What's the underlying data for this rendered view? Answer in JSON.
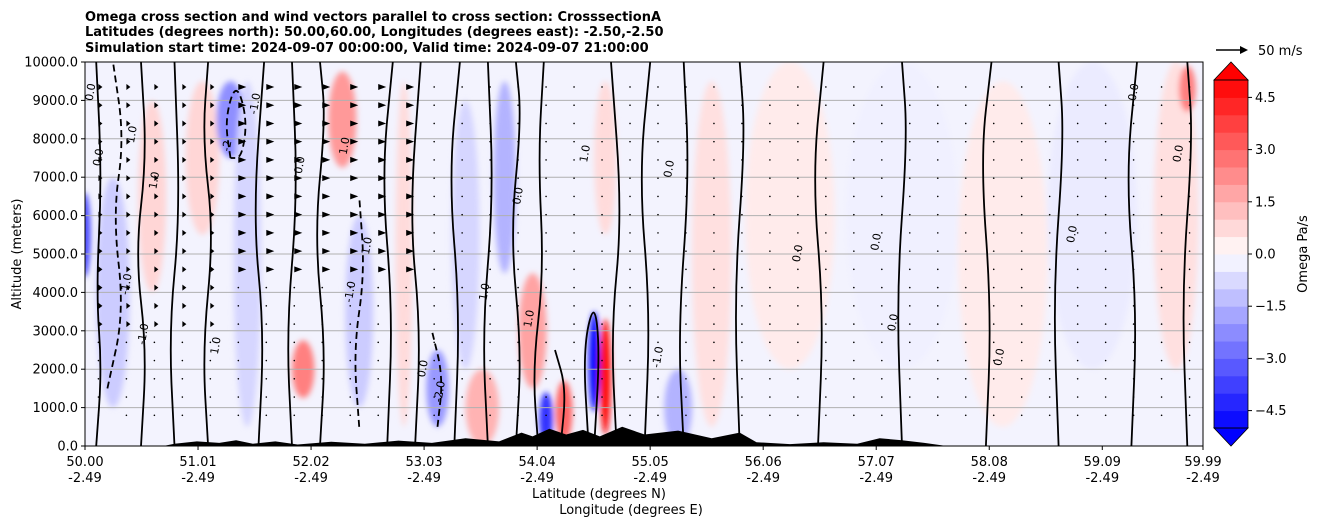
{
  "chart_data": {
    "type": "heatmap",
    "title_lines": [
      "Omega cross section and wind vectors parallel to cross section: CrosssectionA",
      "Latitudes (degrees north): 50.00,60.00, Longitudes (degrees east): -2.50,-2.50",
      "Simulation start time: 2024-09-07 00:00:00, Valid time: 2024-09-07 21:00:00"
    ],
    "ylabel": "Altitude (meters)",
    "xlabel_lat": "Latitude (degrees N)",
    "xlabel_lon": "Longitude (degrees E)",
    "ylim": [
      0,
      10000
    ],
    "xlim": [
      50.0,
      59.99
    ],
    "y_ticks": [
      {
        "value": 0,
        "label": "0.0"
      },
      {
        "value": 1000,
        "label": "1000.0"
      },
      {
        "value": 2000,
        "label": "2000.0"
      },
      {
        "value": 3000,
        "label": "3000.0"
      },
      {
        "value": 4000,
        "label": "4000.0"
      },
      {
        "value": 5000,
        "label": "5000.0"
      },
      {
        "value": 6000,
        "label": "6000.0"
      },
      {
        "value": 7000,
        "label": "7000.0"
      },
      {
        "value": 8000,
        "label": "8000.0"
      },
      {
        "value": 9000,
        "label": "9000.0"
      },
      {
        "value": 10000,
        "label": "10000.0"
      }
    ],
    "x_ticks": [
      {
        "value": 50.0,
        "lat": "50.00",
        "lon": "-2.49"
      },
      {
        "value": 51.01,
        "lat": "51.01",
        "lon": "-2.49"
      },
      {
        "value": 52.02,
        "lat": "52.02",
        "lon": "-2.49"
      },
      {
        "value": 53.03,
        "lat": "53.03",
        "lon": "-2.49"
      },
      {
        "value": 54.04,
        "lat": "54.04",
        "lon": "-2.49"
      },
      {
        "value": 55.05,
        "lat": "55.05",
        "lon": "-2.49"
      },
      {
        "value": 56.06,
        "lat": "56.06",
        "lon": "-2.49"
      },
      {
        "value": 57.07,
        "lat": "57.07",
        "lon": "-2.49"
      },
      {
        "value": 58.08,
        "lat": "58.08",
        "lon": "-2.49"
      },
      {
        "value": 59.09,
        "lat": "59.09",
        "lon": "-2.49"
      },
      {
        "value": 59.99,
        "lat": "59.99",
        "lon": "-2.49"
      }
    ],
    "colorbar": {
      "label": "Omega Pa/s",
      "range": [
        -5.0,
        5.0
      ],
      "ticks": [
        {
          "value": 4.5,
          "label": "4.5"
        },
        {
          "value": 3.0,
          "label": "3.0"
        },
        {
          "value": 1.5,
          "label": "1.5"
        },
        {
          "value": 0.0,
          "label": "0.0"
        },
        {
          "value": -1.5,
          "label": "−1.5"
        },
        {
          "value": -3.0,
          "label": "−3.0"
        },
        {
          "value": -4.5,
          "label": "−4.5"
        }
      ]
    },
    "wind_key": {
      "label": "50 m/s",
      "speed": 50
    },
    "shaded_regions": [
      {
        "x": 50.0,
        "alt": 5500,
        "w": 0.1,
        "h": 2200,
        "omega": -3.5
      },
      {
        "x": 50.25,
        "alt": 4000,
        "w": 0.3,
        "h": 6000,
        "omega": -1.0
      },
      {
        "x": 50.6,
        "alt": 6500,
        "w": 0.25,
        "h": 5000,
        "omega": 0.8
      },
      {
        "x": 51.05,
        "alt": 7500,
        "w": 0.3,
        "h": 4000,
        "omega": 0.8
      },
      {
        "x": 51.3,
        "alt": 8500,
        "w": 0.25,
        "h": 2000,
        "omega": -2.2
      },
      {
        "x": 51.45,
        "alt": 5000,
        "w": 0.25,
        "h": 9000,
        "omega": -0.8
      },
      {
        "x": 51.95,
        "alt": 2000,
        "w": 0.2,
        "h": 1500,
        "omega": 2.5
      },
      {
        "x": 52.3,
        "alt": 8500,
        "w": 0.25,
        "h": 2500,
        "omega": 2.0
      },
      {
        "x": 52.45,
        "alt": 3500,
        "w": 0.25,
        "h": 5000,
        "omega": -1.0
      },
      {
        "x": 52.85,
        "alt": 5000,
        "w": 0.15,
        "h": 9000,
        "omega": 0.7
      },
      {
        "x": 53.15,
        "alt": 1500,
        "w": 0.2,
        "h": 2000,
        "omega": -2.0
      },
      {
        "x": 53.4,
        "alt": 5500,
        "w": 0.25,
        "h": 7000,
        "omega": -0.8
      },
      {
        "x": 53.55,
        "alt": 1000,
        "w": 0.3,
        "h": 2000,
        "omega": 1.5
      },
      {
        "x": 53.75,
        "alt": 7000,
        "w": 0.2,
        "h": 5000,
        "omega": -1.5
      },
      {
        "x": 54.0,
        "alt": 3000,
        "w": 0.25,
        "h": 3000,
        "omega": 1.8
      },
      {
        "x": 54.12,
        "alt": 700,
        "w": 0.12,
        "h": 1400,
        "omega": -4.0
      },
      {
        "x": 54.28,
        "alt": 900,
        "w": 0.15,
        "h": 1600,
        "omega": 3.0
      },
      {
        "x": 54.55,
        "alt": 2200,
        "w": 0.1,
        "h": 2600,
        "omega": -4.8
      },
      {
        "x": 54.65,
        "alt": 1800,
        "w": 0.1,
        "h": 3000,
        "omega": 4.8
      },
      {
        "x": 54.65,
        "alt": 7500,
        "w": 0.2,
        "h": 4000,
        "omega": 0.7
      },
      {
        "x": 55.3,
        "alt": 1000,
        "w": 0.25,
        "h": 2000,
        "omega": -1.5
      },
      {
        "x": 55.6,
        "alt": 5000,
        "w": 0.35,
        "h": 9000,
        "omega": 0.6
      },
      {
        "x": 56.3,
        "alt": 6000,
        "w": 0.8,
        "h": 8000,
        "omega": 0.4
      },
      {
        "x": 57.3,
        "alt": 6000,
        "w": 1.0,
        "h": 8000,
        "omega": -0.3
      },
      {
        "x": 58.2,
        "alt": 5000,
        "w": 0.8,
        "h": 9000,
        "omega": 0.4
      },
      {
        "x": 59.0,
        "alt": 6000,
        "w": 0.8,
        "h": 8000,
        "omega": -0.4
      },
      {
        "x": 59.75,
        "alt": 6000,
        "w": 0.4,
        "h": 8000,
        "omega": 0.6
      },
      {
        "x": 59.85,
        "alt": 9300,
        "w": 0.15,
        "h": 1200,
        "omega": 2.5
      }
    ],
    "contour_lines": [
      {
        "style": "solid",
        "points": [
          [
            50.1,
            0
          ],
          [
            50.15,
            2000
          ],
          [
            50.1,
            4000
          ],
          [
            50.15,
            7000
          ],
          [
            50.1,
            10000
          ]
        ]
      },
      {
        "style": "dashed",
        "points": [
          [
            50.2,
            1500
          ],
          [
            50.35,
            3500
          ],
          [
            50.25,
            6000
          ],
          [
            50.35,
            8000
          ],
          [
            50.25,
            10000
          ]
        ]
      },
      {
        "style": "solid",
        "points": [
          [
            50.5,
            0
          ],
          [
            50.55,
            2500
          ],
          [
            50.45,
            5000
          ],
          [
            50.55,
            7500
          ],
          [
            50.5,
            10000
          ]
        ]
      },
      {
        "style": "solid",
        "points": [
          [
            50.8,
            0
          ],
          [
            50.75,
            3000
          ],
          [
            50.85,
            6000
          ],
          [
            50.8,
            10000
          ]
        ]
      },
      {
        "style": "solid",
        "points": [
          [
            51.1,
            0
          ],
          [
            51.05,
            2500
          ],
          [
            51.15,
            5500
          ],
          [
            51.05,
            8000
          ],
          [
            51.1,
            10000
          ]
        ]
      },
      {
        "style": "dashed",
        "points": [
          [
            51.3,
            7500
          ],
          [
            51.25,
            8500
          ],
          [
            51.35,
            9500
          ],
          [
            51.45,
            8500
          ],
          [
            51.4,
            7500
          ],
          [
            51.3,
            7500
          ]
        ]
      },
      {
        "style": "solid",
        "points": [
          [
            51.55,
            0
          ],
          [
            51.6,
            3000
          ],
          [
            51.5,
            6000
          ],
          [
            51.6,
            10000
          ]
        ]
      },
      {
        "style": "solid",
        "points": [
          [
            51.85,
            0
          ],
          [
            51.8,
            3000
          ],
          [
            51.9,
            6500
          ],
          [
            51.85,
            10000
          ]
        ]
      },
      {
        "style": "solid",
        "points": [
          [
            52.1,
            0
          ],
          [
            52.15,
            2500
          ],
          [
            52.05,
            5500
          ],
          [
            52.15,
            8500
          ],
          [
            52.1,
            10000
          ]
        ]
      },
      {
        "style": "dashed",
        "points": [
          [
            52.45,
            500
          ],
          [
            52.4,
            2500
          ],
          [
            52.5,
            4500
          ],
          [
            52.45,
            6500
          ]
        ]
      },
      {
        "style": "solid",
        "points": [
          [
            52.7,
            0
          ],
          [
            52.75,
            3500
          ],
          [
            52.65,
            7000
          ],
          [
            52.75,
            10000
          ]
        ]
      },
      {
        "style": "solid",
        "points": [
          [
            52.95,
            0
          ],
          [
            53.0,
            3000
          ],
          [
            52.9,
            6000
          ],
          [
            53.0,
            10000
          ]
        ]
      },
      {
        "style": "dashed",
        "points": [
          [
            53.15,
            500
          ],
          [
            53.2,
            1800
          ],
          [
            53.1,
            3000
          ]
        ]
      },
      {
        "style": "solid",
        "points": [
          [
            53.3,
            0
          ],
          [
            53.35,
            3500
          ],
          [
            53.25,
            7000
          ],
          [
            53.35,
            10000
          ]
        ]
      },
      {
        "style": "solid",
        "points": [
          [
            53.6,
            0
          ],
          [
            53.55,
            3000
          ],
          [
            53.65,
            6500
          ],
          [
            53.6,
            10000
          ]
        ]
      },
      {
        "style": "solid",
        "points": [
          [
            53.85,
            0
          ],
          [
            53.9,
            2500
          ],
          [
            53.8,
            5500
          ],
          [
            53.9,
            8500
          ],
          [
            53.85,
            10000
          ]
        ]
      },
      {
        "style": "solid",
        "points": [
          [
            54.05,
            0
          ],
          [
            54.0,
            2000
          ],
          [
            54.1,
            4500
          ],
          [
            54.05,
            7500
          ],
          [
            54.1,
            10000
          ]
        ]
      },
      {
        "style": "solid",
        "points": [
          [
            54.25,
            0
          ],
          [
            54.3,
            1500
          ],
          [
            54.2,
            2500
          ]
        ]
      },
      {
        "style": "solid",
        "points": [
          [
            54.5,
            0
          ],
          [
            54.45,
            2500
          ],
          [
            54.55,
            3800
          ],
          [
            54.6,
            2500
          ],
          [
            54.55,
            0
          ]
        ]
      },
      {
        "style": "solid",
        "points": [
          [
            54.75,
            0
          ],
          [
            54.7,
            3000
          ],
          [
            54.8,
            6000
          ],
          [
            54.7,
            10000
          ]
        ]
      },
      {
        "style": "solid",
        "points": [
          [
            55.0,
            0
          ],
          [
            55.05,
            3500
          ],
          [
            54.95,
            7000
          ],
          [
            55.05,
            10000
          ]
        ]
      },
      {
        "style": "solid",
        "points": [
          [
            55.35,
            0
          ],
          [
            55.3,
            3000
          ],
          [
            55.4,
            7000
          ],
          [
            55.35,
            10000
          ]
        ]
      },
      {
        "style": "solid",
        "points": [
          [
            55.85,
            0
          ],
          [
            55.8,
            4000
          ],
          [
            55.9,
            8000
          ],
          [
            55.85,
            10000
          ]
        ]
      },
      {
        "style": "solid",
        "points": [
          [
            56.55,
            0
          ],
          [
            56.6,
            3500
          ],
          [
            56.5,
            7000
          ],
          [
            56.6,
            10000
          ]
        ]
      },
      {
        "style": "solid",
        "points": [
          [
            57.3,
            0
          ],
          [
            57.25,
            4000
          ],
          [
            57.35,
            8000
          ],
          [
            57.3,
            10000
          ]
        ]
      },
      {
        "style": "solid",
        "points": [
          [
            58.05,
            0
          ],
          [
            58.1,
            3500
          ],
          [
            58.0,
            7500
          ],
          [
            58.1,
            10000
          ]
        ]
      },
      {
        "style": "solid",
        "points": [
          [
            58.7,
            0
          ],
          [
            58.65,
            4000
          ],
          [
            58.75,
            8000
          ],
          [
            58.7,
            10000
          ]
        ]
      },
      {
        "style": "solid",
        "points": [
          [
            59.35,
            0
          ],
          [
            59.4,
            3500
          ],
          [
            59.3,
            7000
          ],
          [
            59.4,
            10000
          ]
        ]
      },
      {
        "style": "solid",
        "points": [
          [
            59.85,
            0
          ],
          [
            59.8,
            4000
          ],
          [
            59.9,
            8000
          ],
          [
            59.85,
            10000
          ]
        ]
      }
    ],
    "contour_labels": [
      {
        "x": 50.08,
        "alt": 9200,
        "text": "0.0"
      },
      {
        "x": 50.15,
        "alt": 7500,
        "text": "0.0"
      },
      {
        "x": 50.4,
        "alt": 4200,
        "text": "-1.0"
      },
      {
        "x": 50.55,
        "alt": 2900,
        "text": "-1.0"
      },
      {
        "x": 50.45,
        "alt": 8100,
        "text": "1.0"
      },
      {
        "x": 50.65,
        "alt": 6900,
        "text": "1.0"
      },
      {
        "x": 51.2,
        "alt": 2600,
        "text": "1.0"
      },
      {
        "x": 51.3,
        "alt": 7800,
        "text": "-2"
      },
      {
        "x": 51.55,
        "alt": 8900,
        "text": "-1.0"
      },
      {
        "x": 51.95,
        "alt": 7300,
        "text": "0.0"
      },
      {
        "x": 52.35,
        "alt": 7800,
        "text": "1.0"
      },
      {
        "x": 52.55,
        "alt": 5200,
        "text": "1.0"
      },
      {
        "x": 52.4,
        "alt": 4000,
        "text": "-1.0"
      },
      {
        "x": 53.2,
        "alt": 1400,
        "text": "-2.0"
      },
      {
        "x": 53.05,
        "alt": 2000,
        "text": "0.0"
      },
      {
        "x": 53.6,
        "alt": 4000,
        "text": "1.0"
      },
      {
        "x": 53.9,
        "alt": 6500,
        "text": "0.0"
      },
      {
        "x": 54.0,
        "alt": 3300,
        "text": "1.0"
      },
      {
        "x": 54.5,
        "alt": 7600,
        "text": "1.0"
      },
      {
        "x": 55.15,
        "alt": 2300,
        "text": "-1.0"
      },
      {
        "x": 55.25,
        "alt": 7200,
        "text": "0.0"
      },
      {
        "x": 56.4,
        "alt": 5000,
        "text": "0.0"
      },
      {
        "x": 57.1,
        "alt": 5300,
        "text": "0.0"
      },
      {
        "x": 57.25,
        "alt": 3200,
        "text": "0.0"
      },
      {
        "x": 58.2,
        "alt": 2300,
        "text": "0.0"
      },
      {
        "x": 58.85,
        "alt": 5500,
        "text": "0.0"
      },
      {
        "x": 59.4,
        "alt": 9200,
        "text": "0.0"
      },
      {
        "x": 59.8,
        "alt": 7600,
        "text": "0.0"
      }
    ],
    "terrain": [
      [
        50.0,
        0
      ],
      [
        50.7,
        0
      ],
      [
        50.8,
        60
      ],
      [
        51.0,
        120
      ],
      [
        51.2,
        80
      ],
      [
        51.35,
        150
      ],
      [
        51.5,
        60
      ],
      [
        51.7,
        120
      ],
      [
        51.9,
        40
      ],
      [
        52.2,
        110
      ],
      [
        52.5,
        60
      ],
      [
        52.8,
        140
      ],
      [
        53.1,
        80
      ],
      [
        53.4,
        200
      ],
      [
        53.7,
        120
      ],
      [
        53.9,
        350
      ],
      [
        54.0,
        250
      ],
      [
        54.15,
        450
      ],
      [
        54.3,
        300
      ],
      [
        54.45,
        420
      ],
      [
        54.6,
        250
      ],
      [
        54.8,
        500
      ],
      [
        55.0,
        300
      ],
      [
        55.3,
        400
      ],
      [
        55.6,
        200
      ],
      [
        55.85,
        350
      ],
      [
        56.0,
        100
      ],
      [
        56.3,
        50
      ],
      [
        56.6,
        100
      ],
      [
        56.9,
        60
      ],
      [
        57.1,
        200
      ],
      [
        57.3,
        150
      ],
      [
        57.5,
        80
      ],
      [
        57.7,
        0
      ],
      [
        59.99,
        0
      ]
    ]
  }
}
